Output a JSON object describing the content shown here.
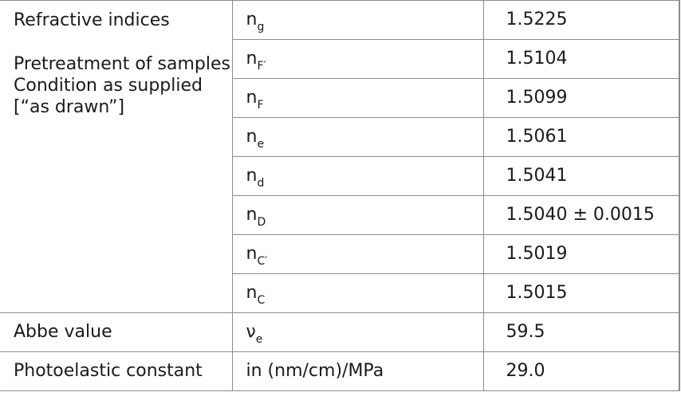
{
  "refractive": {
    "heading": "Refractive indices",
    "notes": [
      "Pretreatment of samples",
      "Condition as supplied",
      "[“as drawn”]"
    ],
    "rows": [
      {
        "sym": "n",
        "sub": "g",
        "value": "1.5225"
      },
      {
        "sym": "n",
        "sub": "F′",
        "value": "1.5104"
      },
      {
        "sym": "n",
        "sub": "F",
        "value": "1.5099"
      },
      {
        "sym": "n",
        "sub": "e",
        "value": "1.5061"
      },
      {
        "sym": "n",
        "sub": "d",
        "value": "1.5041"
      },
      {
        "sym": "n",
        "sub": "D",
        "value": "1.5040 ± 0.0015"
      },
      {
        "sym": "n",
        "sub": "C′",
        "value": "1.5019"
      },
      {
        "sym": "n",
        "sub": "C",
        "value": "1.5015"
      }
    ]
  },
  "abbe": {
    "label": "Abbe value",
    "sym": "ν",
    "sub": "e",
    "value": "59.5"
  },
  "photoelastic": {
    "label": "Photoelastic constant",
    "unit": "in (nm/cm)/MPa",
    "value": "29.0"
  }
}
